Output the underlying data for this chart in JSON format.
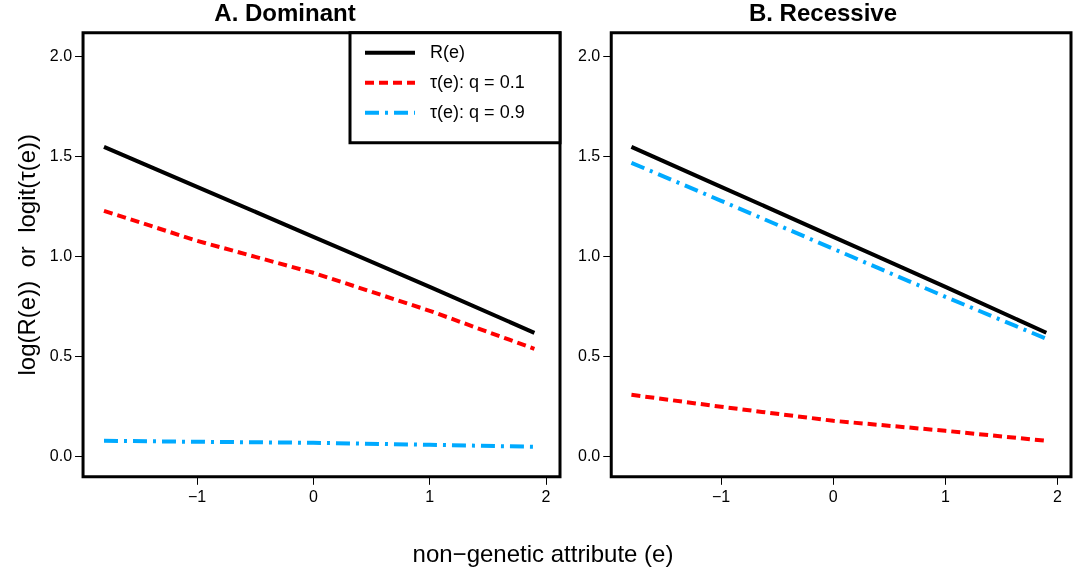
{
  "chart_data": [
    {
      "type": "line",
      "title": "A. Dominant",
      "ylabel": "log(R(e))  or  logit(τ(e))",
      "xlabel": "non−genetic attribute (e)",
      "xlim": [
        -1.98,
        2.12
      ],
      "ylim": [
        -0.1,
        2.12
      ],
      "xticks": [
        {
          "value": -1,
          "label": "−1"
        },
        0,
        1,
        2
      ],
      "yticks": [
        {
          "value": 0,
          "label": "0.0"
        },
        {
          "value": 0.5,
          "label": "0.5"
        },
        {
          "value": 1,
          "label": "1.0"
        },
        {
          "value": 1.5,
          "label": "1.5"
        },
        {
          "value": 2,
          "label": "2.0"
        }
      ],
      "grid": false,
      "legend": "top right",
      "series": [
        {
          "name": "R(e)",
          "color": "#000000",
          "line_style": "solid",
          "x": [
            -1.8,
            -1,
            0,
            1,
            1.9
          ],
          "values": [
            1.55,
            1.35,
            1.1,
            0.85,
            0.62
          ]
        },
        {
          "name": "τ(e): q = 0.1",
          "color": "#ff0000",
          "line_style": "dashed",
          "x": [
            -1.8,
            -1,
            0,
            1,
            1.9
          ],
          "values": [
            1.23,
            1.08,
            0.92,
            0.73,
            0.54
          ]
        },
        {
          "name": "τ(e): q = 0.9",
          "color": "#00aaff",
          "line_style": "dashdot",
          "x": [
            -1.8,
            -1,
            0,
            1,
            1.9
          ],
          "values": [
            0.08,
            0.075,
            0.07,
            0.06,
            0.05
          ]
        }
      ]
    },
    {
      "type": "line",
      "title": "B. Recessive",
      "xlim": [
        -1.98,
        2.12
      ],
      "ylim": [
        -0.1,
        2.12
      ],
      "xticks": [
        {
          "value": -1,
          "label": "−1"
        },
        0,
        1,
        2
      ],
      "yticks": [
        {
          "value": 0,
          "label": "0.0"
        },
        {
          "value": 0.5,
          "label": "0.5"
        },
        {
          "value": 1,
          "label": "1.0"
        },
        {
          "value": 1.5,
          "label": "1.5"
        },
        {
          "value": 2,
          "label": "2.0"
        }
      ],
      "grid": false,
      "series": [
        {
          "color": "#000000",
          "line_style": "solid",
          "x": [
            -1.8,
            -1,
            0,
            1,
            1.9
          ],
          "values": [
            1.55,
            1.35,
            1.1,
            0.85,
            0.62
          ]
        },
        {
          "color": "#ff0000",
          "line_style": "dashed",
          "x": [
            -1.8,
            -1,
            0,
            1,
            1.9
          ],
          "values": [
            0.31,
            0.25,
            0.18,
            0.13,
            0.08
          ]
        },
        {
          "color": "#00aaff",
          "line_style": "dashdot",
          "x": [
            -1.8,
            -1,
            0,
            1,
            1.9
          ],
          "values": [
            1.47,
            1.28,
            1.04,
            0.8,
            0.59
          ]
        }
      ]
    }
  ]
}
